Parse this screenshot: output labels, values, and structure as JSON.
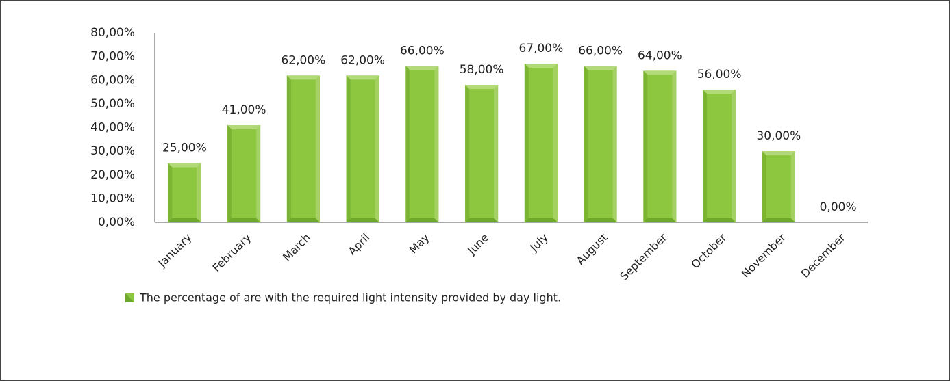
{
  "chart_data": {
    "type": "bar",
    "categories": [
      "January",
      "February",
      "March",
      "April",
      "May",
      "June",
      "July",
      "August",
      "September",
      "October",
      "November",
      "December"
    ],
    "series": [
      {
        "name": "The percentage of are with the required light intensity provided by day light.",
        "color": "#8dc63f",
        "values": [
          25,
          41,
          62,
          62,
          66,
          58,
          67,
          66,
          64,
          56,
          30,
          0
        ],
        "value_labels": [
          "25,00%",
          "41,00%",
          "62,00%",
          "62,00%",
          "66,00%",
          "58,00%",
          "67,00%",
          "66,00%",
          "64,00%",
          "56,00%",
          "30,00%",
          "0,00%"
        ]
      }
    ],
    "ylim": [
      0,
      80
    ],
    "yticks": [
      {
        "value": 0,
        "label": "0,00%"
      },
      {
        "value": 10,
        "label": "10,00%"
      },
      {
        "value": 20,
        "label": "20,00%"
      },
      {
        "value": 30,
        "label": "30,00%"
      },
      {
        "value": 40,
        "label": "40,00%"
      },
      {
        "value": 50,
        "label": "50,00%"
      },
      {
        "value": 60,
        "label": "60,00%"
      },
      {
        "value": 70,
        "label": "70,00%"
      },
      {
        "value": 80,
        "label": "80,00%"
      }
    ],
    "grid": false,
    "legend": "bottom"
  }
}
